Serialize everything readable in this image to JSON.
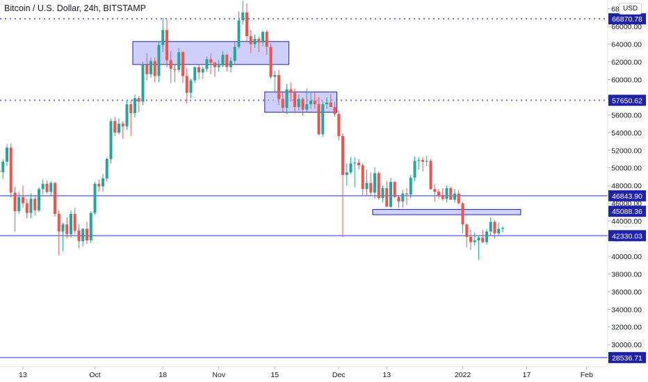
{
  "header": {
    "title": "Bitcoin / U.S. Dollar, 24h, BITSTAMP",
    "currency": "USD"
  },
  "colors": {
    "up": "#26a69a",
    "down": "#ef5350",
    "level_line": "#6a6ef5",
    "zone_fill": "#b3b6f7",
    "label_bg": "#1e22aa",
    "axis_text": "#131722"
  },
  "chart_data": {
    "type": "candlestick",
    "title": "Bitcoin / U.S. Dollar, 24h, BITSTAMP",
    "ylim": [
      27500,
      69000
    ],
    "grid": false,
    "y_ticks": [
      "30000.00",
      "32000.00",
      "34000.00",
      "36000.00",
      "38000.00",
      "40000.00",
      "42000.00",
      "44000.00",
      "46000.00",
      "48000.00",
      "50000.00",
      "52000.00",
      "54000.00",
      "56000.00",
      "58000.00",
      "60000.00",
      "62000.00",
      "64000.00",
      "66000.00",
      "68000.00"
    ],
    "x_ticks": [
      {
        "label": "13",
        "index": 6
      },
      {
        "label": "Oct",
        "index": 24
      },
      {
        "label": "18",
        "index": 41
      },
      {
        "label": "Nov",
        "index": 55
      },
      {
        "label": "15",
        "index": 69
      },
      {
        "label": "Dec",
        "index": 85
      },
      {
        "label": "13",
        "index": 97
      },
      {
        "label": "2022",
        "index": 116
      },
      {
        "label": "17",
        "index": 132
      },
      {
        "label": "Feb",
        "index": 147
      }
    ],
    "horizontal_levels": [
      {
        "value": 66870.78,
        "label": "66870.78",
        "style": "dotted"
      },
      {
        "value": 57650.62,
        "label": "57650.62",
        "style": "dotted"
      },
      {
        "value": 46843.9,
        "label": "46843.90",
        "style": "solid"
      },
      {
        "value": 45088.36,
        "label": "45088.36",
        "style": "zone"
      },
      {
        "value": 42330.03,
        "label": "42330.03",
        "style": "solid"
      },
      {
        "value": 28536.71,
        "label": "28536.71",
        "style": "solid"
      }
    ],
    "zones": [
      {
        "x_start": 34,
        "x_end": 72,
        "y_low": 61700,
        "y_high": 64300
      },
      {
        "x_start": 67,
        "x_end": 84,
        "y_low": 56300,
        "y_high": 58600
      },
      {
        "x_start": 94,
        "x_end": 130,
        "y_low": 44700,
        "y_high": 45300
      }
    ],
    "candles": [
      [
        49800,
        50500,
        49000,
        49500
      ],
      [
        49500,
        51000,
        48800,
        50700
      ],
      [
        50700,
        52700,
        50200,
        52300
      ],
      [
        52300,
        52800,
        46600,
        47200
      ],
      [
        47200,
        47900,
        42800,
        45100
      ],
      [
        45100,
        47300,
        44800,
        46700
      ],
      [
        46700,
        48000,
        45500,
        46000
      ],
      [
        46000,
        46500,
        44300,
        44900
      ],
      [
        44900,
        47100,
        44300,
        46500
      ],
      [
        46500,
        46800,
        44600,
        45200
      ],
      [
        45200,
        47800,
        45000,
        47600
      ],
      [
        47600,
        48700,
        47000,
        48200
      ],
      [
        48200,
        48600,
        47100,
        47300
      ],
      [
        47300,
        48500,
        46900,
        48300
      ],
      [
        48300,
        48400,
        44500,
        44800
      ],
      [
        44800,
        45200,
        40100,
        42800
      ],
      [
        42800,
        43800,
        40600,
        43600
      ],
      [
        43600,
        44400,
        42000,
        42500
      ],
      [
        42500,
        45200,
        42100,
        44800
      ],
      [
        44800,
        45500,
        42500,
        42900
      ],
      [
        42900,
        43600,
        40900,
        41700
      ],
      [
        41700,
        43200,
        41100,
        43100
      ],
      [
        43100,
        43900,
        41400,
        41800
      ],
      [
        41800,
        45100,
        41500,
        44900
      ],
      [
        44900,
        48400,
        44700,
        48200
      ],
      [
        48200,
        48700,
        47300,
        47900
      ],
      [
        47900,
        49300,
        47300,
        48800
      ],
      [
        48800,
        51200,
        48500,
        51000
      ],
      [
        51000,
        55600,
        50500,
        55300
      ],
      [
        55300,
        55800,
        53600,
        54000
      ],
      [
        54000,
        55600,
        53800,
        55000
      ],
      [
        55000,
        55300,
        53300,
        54700
      ],
      [
        54700,
        57700,
        54300,
        57200
      ],
      [
        57200,
        57700,
        53600,
        56200
      ],
      [
        56200,
        58300,
        55700,
        57900
      ],
      [
        57900,
        58100,
        56300,
        57500
      ],
      [
        57500,
        62000,
        57100,
        61700
      ],
      [
        61700,
        63000,
        59900,
        60600
      ],
      [
        60600,
        62500,
        60200,
        62100
      ],
      [
        62100,
        62500,
        59700,
        60400
      ],
      [
        60400,
        64300,
        59700,
        63900
      ],
      [
        63900,
        67000,
        63100,
        65600
      ],
      [
        65600,
        66800,
        61400,
        62200
      ],
      [
        62200,
        63200,
        59600,
        61200
      ],
      [
        61200,
        61700,
        59700,
        61100
      ],
      [
        61100,
        63600,
        60800,
        63100
      ],
      [
        63100,
        63200,
        59600,
        60400
      ],
      [
        60400,
        61300,
        57300,
        58500
      ],
      [
        58500,
        60100,
        57900,
        59900
      ],
      [
        59900,
        61500,
        59600,
        61400
      ],
      [
        61400,
        61700,
        60000,
        60800
      ],
      [
        60800,
        61500,
        60100,
        61200
      ],
      [
        61200,
        62600,
        60900,
        62300
      ],
      [
        62300,
        63000,
        60600,
        61900
      ],
      [
        61900,
        62000,
        60300,
        61400
      ],
      [
        61400,
        62200,
        60900,
        61600
      ],
      [
        61600,
        63200,
        61400,
        62800
      ],
      [
        62800,
        62900,
        60900,
        61400
      ],
      [
        61400,
        62500,
        60800,
        62100
      ],
      [
        62100,
        64300,
        61800,
        63700
      ],
      [
        63700,
        67700,
        63500,
        66700
      ],
      [
        66700,
        68900,
        66200,
        67600
      ],
      [
        67600,
        68600,
        64300,
        64900
      ],
      [
        64900,
        65600,
        63000,
        64000
      ],
      [
        64000,
        65100,
        63600,
        64600
      ],
      [
        64600,
        64900,
        63100,
        64200
      ],
      [
        64200,
        65500,
        63800,
        65400
      ],
      [
        65400,
        65600,
        62800,
        63700
      ],
      [
        63700,
        64100,
        60100,
        60300
      ],
      [
        60300,
        61000,
        58600,
        60500
      ],
      [
        60500,
        61100,
        57100,
        57800
      ],
      [
        57800,
        58600,
        56300,
        56800
      ],
      [
        56800,
        59500,
        56100,
        58900
      ],
      [
        58900,
        59700,
        57500,
        58500
      ],
      [
        58500,
        59000,
        56200,
        56900
      ],
      [
        56900,
        58300,
        56500,
        57800
      ],
      [
        57800,
        58000,
        55900,
        56600
      ],
      [
        56600,
        59000,
        56300,
        57200
      ],
      [
        57200,
        58500,
        56700,
        57600
      ],
      [
        57600,
        58500,
        56700,
        57200
      ],
      [
        57200,
        58000,
        53700,
        53800
      ],
      [
        53800,
        57600,
        53500,
        57200
      ],
      [
        57200,
        58000,
        56700,
        57400
      ],
      [
        57400,
        58400,
        56900,
        56900
      ],
      [
        56900,
        57500,
        55800,
        56100
      ],
      [
        56100,
        56500,
        53100,
        53600
      ],
      [
        53600,
        53900,
        42200,
        49200
      ],
      [
        49200,
        50500,
        48000,
        49500
      ],
      [
        49500,
        51200,
        49300,
        50500
      ],
      [
        50500,
        51200,
        47800,
        50600
      ],
      [
        50600,
        51000,
        49800,
        50300
      ],
      [
        50300,
        50500,
        46800,
        47600
      ],
      [
        47600,
        49800,
        46800,
        48300
      ],
      [
        48300,
        49500,
        46800,
        47200
      ],
      [
        47200,
        50100,
        46500,
        49400
      ],
      [
        49400,
        49600,
        46400,
        46600
      ],
      [
        46600,
        48000,
        46100,
        47700
      ],
      [
        47700,
        48500,
        45700,
        45600
      ],
      [
        45600,
        48900,
        45500,
        48400
      ],
      [
        48400,
        48500,
        46600,
        46700
      ],
      [
        46700,
        46900,
        45500,
        46200
      ],
      [
        46200,
        47500,
        45500,
        47100
      ],
      [
        47100,
        47700,
        45800,
        47000
      ],
      [
        47000,
        49200,
        46600,
        48900
      ],
      [
        48900,
        51300,
        48500,
        50800
      ],
      [
        50800,
        51200,
        49800,
        50900
      ],
      [
        50900,
        51200,
        49600,
        50700
      ],
      [
        50700,
        51400,
        50200,
        50800
      ],
      [
        50800,
        51000,
        47500,
        47600
      ],
      [
        47600,
        48200,
        46200,
        47300
      ],
      [
        47300,
        47600,
        46500,
        46900
      ],
      [
        46900,
        47700,
        46300,
        46500
      ],
      [
        46500,
        48000,
        46100,
        47700
      ],
      [
        47700,
        47900,
        46400,
        46400
      ],
      [
        46400,
        47600,
        46100,
        47100
      ],
      [
        47100,
        47500,
        45900,
        46000
      ],
      [
        46000,
        46100,
        42600,
        43600
      ],
      [
        43600,
        43700,
        41000,
        42200
      ],
      [
        42200,
        43000,
        40700,
        41600
      ],
      [
        41600,
        42700,
        41200,
        41800
      ],
      [
        41800,
        42300,
        39600,
        42100
      ],
      [
        42100,
        43000,
        41500,
        41600
      ],
      [
        41600,
        43100,
        41300,
        42800
      ],
      [
        42800,
        44400,
        42300,
        43900
      ],
      [
        43900,
        44100,
        42000,
        42600
      ],
      [
        42600,
        43800,
        42300,
        43100
      ],
      [
        43100,
        43400,
        42700,
        43200
      ]
    ],
    "ylabel": "",
    "xlabel": ""
  }
}
